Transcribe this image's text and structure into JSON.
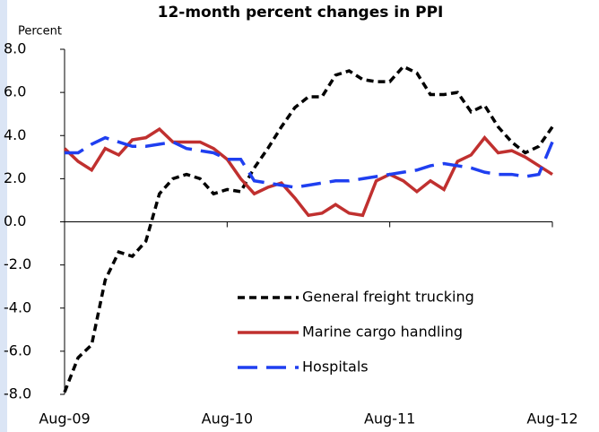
{
  "chart_data": {
    "type": "line",
    "title": "12-month percent changes in PPI",
    "y_axis_label": "Percent",
    "categories": [
      "Aug-09",
      null,
      null,
      null,
      null,
      null,
      null,
      null,
      null,
      null,
      null,
      null,
      "Aug-10",
      null,
      null,
      null,
      null,
      null,
      null,
      null,
      null,
      null,
      null,
      null,
      "Aug-11",
      null,
      null,
      null,
      null,
      null,
      null,
      null,
      null,
      null,
      null,
      null,
      "Aug-12"
    ],
    "series": [
      {
        "name": "General freight trucking",
        "color": "#000000",
        "dash": "short",
        "values": [
          -7.9,
          -6.3,
          -5.7,
          -2.7,
          -1.4,
          -1.6,
          -0.9,
          1.3,
          2.0,
          2.2,
          2.0,
          1.3,
          1.5,
          1.4,
          2.5,
          3.4,
          4.4,
          5.3,
          5.8,
          5.8,
          6.8,
          7.0,
          6.6,
          6.5,
          6.5,
          7.2,
          6.9,
          5.9,
          5.9,
          6.0,
          5.1,
          5.4,
          4.4,
          3.7,
          3.2,
          3.5,
          4.4
        ]
      },
      {
        "name": "Marine cargo handling",
        "color": "#c0302f",
        "dash": "solid",
        "values": [
          3.4,
          2.8,
          2.4,
          3.4,
          3.1,
          3.8,
          3.9,
          4.3,
          3.7,
          3.7,
          3.7,
          3.4,
          2.9,
          2.0,
          1.3,
          1.6,
          1.8,
          1.1,
          0.3,
          0.4,
          0.8,
          0.4,
          0.3,
          1.9,
          2.2,
          1.9,
          1.4,
          1.9,
          1.5,
          2.8,
          3.1,
          3.9,
          3.2,
          3.3,
          3.0,
          2.6,
          2.2
        ]
      },
      {
        "name": "Hospitals",
        "color": "#1f3ff0",
        "dash": "long",
        "values": [
          3.2,
          3.2,
          3.6,
          3.9,
          3.7,
          3.5,
          3.5,
          3.6,
          3.7,
          3.4,
          3.3,
          3.2,
          2.9,
          2.9,
          1.9,
          1.8,
          1.7,
          1.6,
          1.7,
          1.8,
          1.9,
          1.9,
          2.0,
          2.1,
          2.2,
          2.3,
          2.4,
          2.6,
          2.7,
          2.6,
          2.5,
          2.3,
          2.2,
          2.2,
          2.1,
          2.2,
          3.7
        ]
      }
    ],
    "ylim": [
      -8,
      8
    ],
    "yticks": [
      {
        "value": -8,
        "label": "-8.0"
      },
      {
        "value": -6,
        "label": "-6.0"
      },
      {
        "value": -4,
        "label": "-4.0"
      },
      {
        "value": -2,
        "label": "-2.0"
      },
      {
        "value": 0,
        "label": "0.0"
      },
      {
        "value": 2,
        "label": "2.0"
      },
      {
        "value": 4,
        "label": "4.0"
      },
      {
        "value": 6,
        "label": "6.0"
      },
      {
        "value": 8,
        "label": "8.0"
      }
    ],
    "legend": "lower right"
  }
}
